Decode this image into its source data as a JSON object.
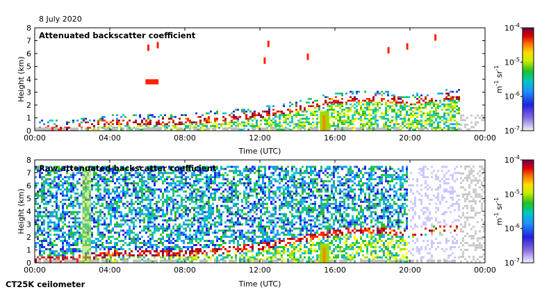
{
  "date_label": "8 July 2020",
  "footer_label": "CT25K ceilometer",
  "colormap": [
    "#ffffff",
    "#5a3fc4",
    "#2020e0",
    "#1e90ff",
    "#00c8c8",
    "#22c022",
    "#aadd00",
    "#ffff00",
    "#ff9900",
    "#ff2200",
    "#b00000",
    "#7a0050"
  ],
  "chart_data": [
    {
      "type": "heatmap",
      "title": "Attenuated backscatter coefficient",
      "xlabel": "Time (UTC)",
      "ylabel": "Height (km)",
      "xlim": [
        "00:00",
        "24:00"
      ],
      "ylim": [
        0,
        8
      ],
      "x_ticks": [
        "00:00",
        "04:00",
        "08:00",
        "12:00",
        "16:00",
        "20:00",
        "00:00"
      ],
      "y_ticks": [
        0,
        1,
        2,
        3,
        4,
        5,
        6,
        7,
        8
      ],
      "colorbar": {
        "scale": "log",
        "range": [
          1e-07,
          0.0001
        ],
        "tick_labels": [
          "10-7",
          "10-6",
          "10-5",
          "10-4"
        ],
        "unit": "m-1 sr-1"
      },
      "cloud_base_km": [
        {
          "time_h": 0.5,
          "height_km": 0.15
        },
        {
          "time_h": 2,
          "height_km": 0.2
        },
        {
          "time_h": 4,
          "height_km": 0.6
        },
        {
          "time_h": 6,
          "height_km": 0.6
        },
        {
          "time_h": 8,
          "height_km": 0.7
        },
        {
          "time_h": 10,
          "height_km": 0.9
        },
        {
          "time_h": 12,
          "height_km": 1.2
        },
        {
          "time_h": 14,
          "height_km": 1.7
        },
        {
          "time_h": 16,
          "height_km": 2.3
        },
        {
          "time_h": 18,
          "height_km": 2.5
        },
        {
          "time_h": 20,
          "height_km": 2.2
        },
        {
          "time_h": 22,
          "height_km": 2.6
        }
      ]
    },
    {
      "type": "heatmap",
      "title": "Raw attenuated backscatter coefficient",
      "xlabel": "Time (UTC)",
      "ylabel": "Height (km)",
      "xlim": [
        "00:00",
        "24:00"
      ],
      "ylim": [
        0,
        8
      ],
      "x_ticks": [
        "00:00",
        "04:00",
        "08:00",
        "12:00",
        "16:00",
        "20:00",
        "00:00"
      ],
      "y_ticks": [
        0,
        1,
        2,
        3,
        4,
        5,
        6,
        7,
        8
      ],
      "colorbar": {
        "scale": "log",
        "range": [
          1e-07,
          0.0001
        ],
        "tick_labels": [
          "10-7",
          "10-6",
          "10-5",
          "10-4"
        ],
        "unit": "m-1 sr-1"
      }
    }
  ]
}
